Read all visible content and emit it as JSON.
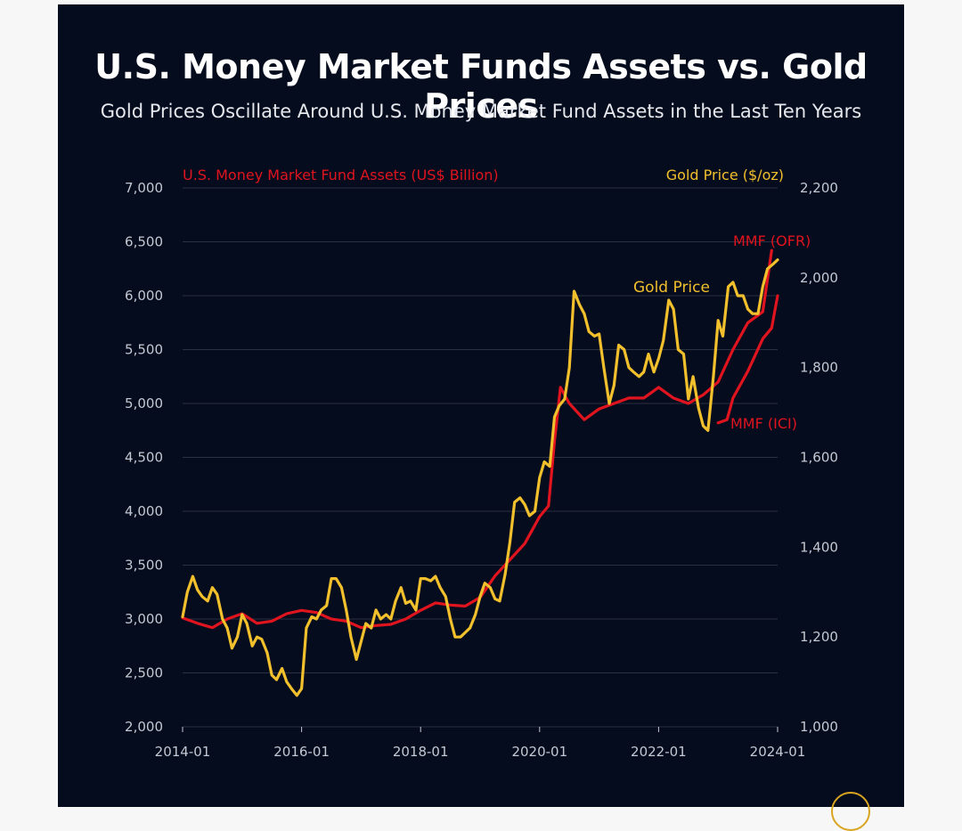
{
  "colors": {
    "background": "#050c1d",
    "mmf": "#e0141e",
    "gold": "#f2c02c",
    "grid": "#2a3142",
    "tick": "#c4c8d2"
  },
  "title": "U.S. Money Market Funds Assets vs. Gold Prices",
  "subtitle": "Gold Prices Oscillate Around U.S. Money Market Fund Assets in the Last Ten Years",
  "chart_data": {
    "type": "line",
    "left_axis_label": "U.S. Money Market Fund Assets (US$ Billion)",
    "right_axis_label": "Gold Price ($/oz)",
    "left_ylim": [
      2000,
      7000
    ],
    "right_ylim": [
      1000,
      2200
    ],
    "left_ticks": [
      "2,000",
      "2,500",
      "3,000",
      "3,500",
      "4,000",
      "4,500",
      "5,000",
      "5,500",
      "6,000",
      "6,500",
      "7,000"
    ],
    "left_tick_values": [
      2000,
      2500,
      3000,
      3500,
      4000,
      4500,
      5000,
      5500,
      6000,
      6500,
      7000
    ],
    "right_ticks": [
      "1,000",
      "1,200",
      "1,400",
      "1,600",
      "1,800",
      "2,000",
      "2,200"
    ],
    "right_tick_values": [
      1000,
      1200,
      1400,
      1600,
      1800,
      2000,
      2200
    ],
    "x_ticks": [
      "2014-01",
      "2016-01",
      "2018-01",
      "2020-01",
      "2022-01",
      "2024-01"
    ],
    "x_tick_values": [
      2014.0,
      2016.0,
      2018.0,
      2020.0,
      2022.0,
      2024.0
    ],
    "xlim": [
      2014.0,
      2024.0
    ],
    "annotations": [
      {
        "text": "Gold Price",
        "series": "gold"
      },
      {
        "text": "MMF (OFR)",
        "series": "mmf"
      },
      {
        "text": "MMF (ICI)",
        "series": "mmf"
      }
    ],
    "series": [
      {
        "name": "MMF (OFR)",
        "axis": "left",
        "color_key": "mmf",
        "x": [
          2014.0,
          2014.25,
          2014.5,
          2014.75,
          2015.0,
          2015.25,
          2015.5,
          2015.75,
          2016.0,
          2016.25,
          2016.5,
          2016.75,
          2017.0,
          2017.25,
          2017.5,
          2017.75,
          2018.0,
          2018.25,
          2018.5,
          2018.75,
          2019.0,
          2019.25,
          2019.5,
          2019.75,
          2020.0,
          2020.15,
          2020.25,
          2020.35,
          2020.5,
          2020.75,
          2021.0,
          2021.25,
          2021.5,
          2021.75,
          2022.0,
          2022.25,
          2022.5,
          2022.75,
          2023.0,
          2023.25,
          2023.5,
          2023.75,
          2023.9
        ],
        "y": [
          3010,
          2960,
          2920,
          3000,
          3050,
          2960,
          2980,
          3050,
          3080,
          3060,
          3000,
          2980,
          2920,
          2940,
          2950,
          3000,
          3080,
          3150,
          3130,
          3120,
          3200,
          3400,
          3550,
          3700,
          3950,
          4050,
          4650,
          5150,
          5000,
          4850,
          4950,
          5000,
          5050,
          5050,
          5150,
          5050,
          5000,
          5080,
          5200,
          5500,
          5750,
          5850,
          6420
        ]
      },
      {
        "name": "MMF (ICI)",
        "axis": "left",
        "color_key": "mmf",
        "x": [
          2023.0,
          2023.15,
          2023.25,
          2023.5,
          2023.75,
          2023.9,
          2024.0
        ],
        "y": [
          4820,
          4850,
          5050,
          5300,
          5600,
          5700,
          6000
        ]
      },
      {
        "name": "Gold Price",
        "axis": "right",
        "color_key": "gold",
        "x": [
          2014.0,
          2014.08,
          2014.17,
          2014.25,
          2014.33,
          2014.42,
          2014.5,
          2014.58,
          2014.67,
          2014.75,
          2014.83,
          2014.92,
          2015.0,
          2015.08,
          2015.17,
          2015.25,
          2015.33,
          2015.42,
          2015.5,
          2015.58,
          2015.67,
          2015.75,
          2015.83,
          2015.92,
          2016.0,
          2016.08,
          2016.17,
          2016.25,
          2016.33,
          2016.42,
          2016.5,
          2016.58,
          2016.67,
          2016.75,
          2016.83,
          2016.92,
          2017.0,
          2017.08,
          2017.17,
          2017.25,
          2017.33,
          2017.42,
          2017.5,
          2017.58,
          2017.67,
          2017.75,
          2017.83,
          2017.92,
          2018.0,
          2018.08,
          2018.17,
          2018.25,
          2018.33,
          2018.42,
          2018.5,
          2018.58,
          2018.67,
          2018.75,
          2018.83,
          2018.92,
          2019.0,
          2019.08,
          2019.17,
          2019.25,
          2019.33,
          2019.42,
          2019.5,
          2019.58,
          2019.67,
          2019.75,
          2019.83,
          2019.92,
          2020.0,
          2020.08,
          2020.17,
          2020.25,
          2020.33,
          2020.42,
          2020.5,
          2020.58,
          2020.67,
          2020.75,
          2020.83,
          2020.92,
          2021.0,
          2021.08,
          2021.17,
          2021.25,
          2021.33,
          2021.42,
          2021.5,
          2021.58,
          2021.67,
          2021.75,
          2021.83,
          2021.92,
          2022.0,
          2022.08,
          2022.17,
          2022.25,
          2022.33,
          2022.42,
          2022.5,
          2022.58,
          2022.67,
          2022.75,
          2022.83,
          2022.92,
          2023.0,
          2023.08,
          2023.17,
          2023.25,
          2023.33,
          2023.42,
          2023.5,
          2023.58,
          2023.67,
          2023.75,
          2023.83,
          2023.92,
          2024.0
        ],
        "y": [
          1245,
          1300,
          1335,
          1305,
          1290,
          1280,
          1310,
          1295,
          1240,
          1220,
          1175,
          1200,
          1250,
          1230,
          1180,
          1200,
          1195,
          1165,
          1115,
          1105,
          1130,
          1100,
          1085,
          1070,
          1085,
          1220,
          1245,
          1240,
          1260,
          1270,
          1330,
          1330,
          1310,
          1260,
          1200,
          1150,
          1190,
          1230,
          1220,
          1260,
          1240,
          1250,
          1240,
          1280,
          1310,
          1275,
          1280,
          1260,
          1330,
          1330,
          1325,
          1335,
          1310,
          1290,
          1240,
          1200,
          1200,
          1210,
          1220,
          1250,
          1290,
          1320,
          1310,
          1285,
          1280,
          1340,
          1410,
          1500,
          1510,
          1495,
          1470,
          1480,
          1555,
          1590,
          1580,
          1690,
          1715,
          1730,
          1800,
          1970,
          1940,
          1920,
          1880,
          1870,
          1875,
          1800,
          1720,
          1760,
          1850,
          1840,
          1800,
          1790,
          1780,
          1790,
          1830,
          1790,
          1820,
          1860,
          1950,
          1930,
          1840,
          1830,
          1730,
          1780,
          1710,
          1670,
          1660,
          1780,
          1905,
          1870,
          1980,
          1990,
          1960,
          1960,
          1930,
          1920,
          1920,
          1980,
          2020,
          2030,
          2040
        ]
      }
    ]
  }
}
